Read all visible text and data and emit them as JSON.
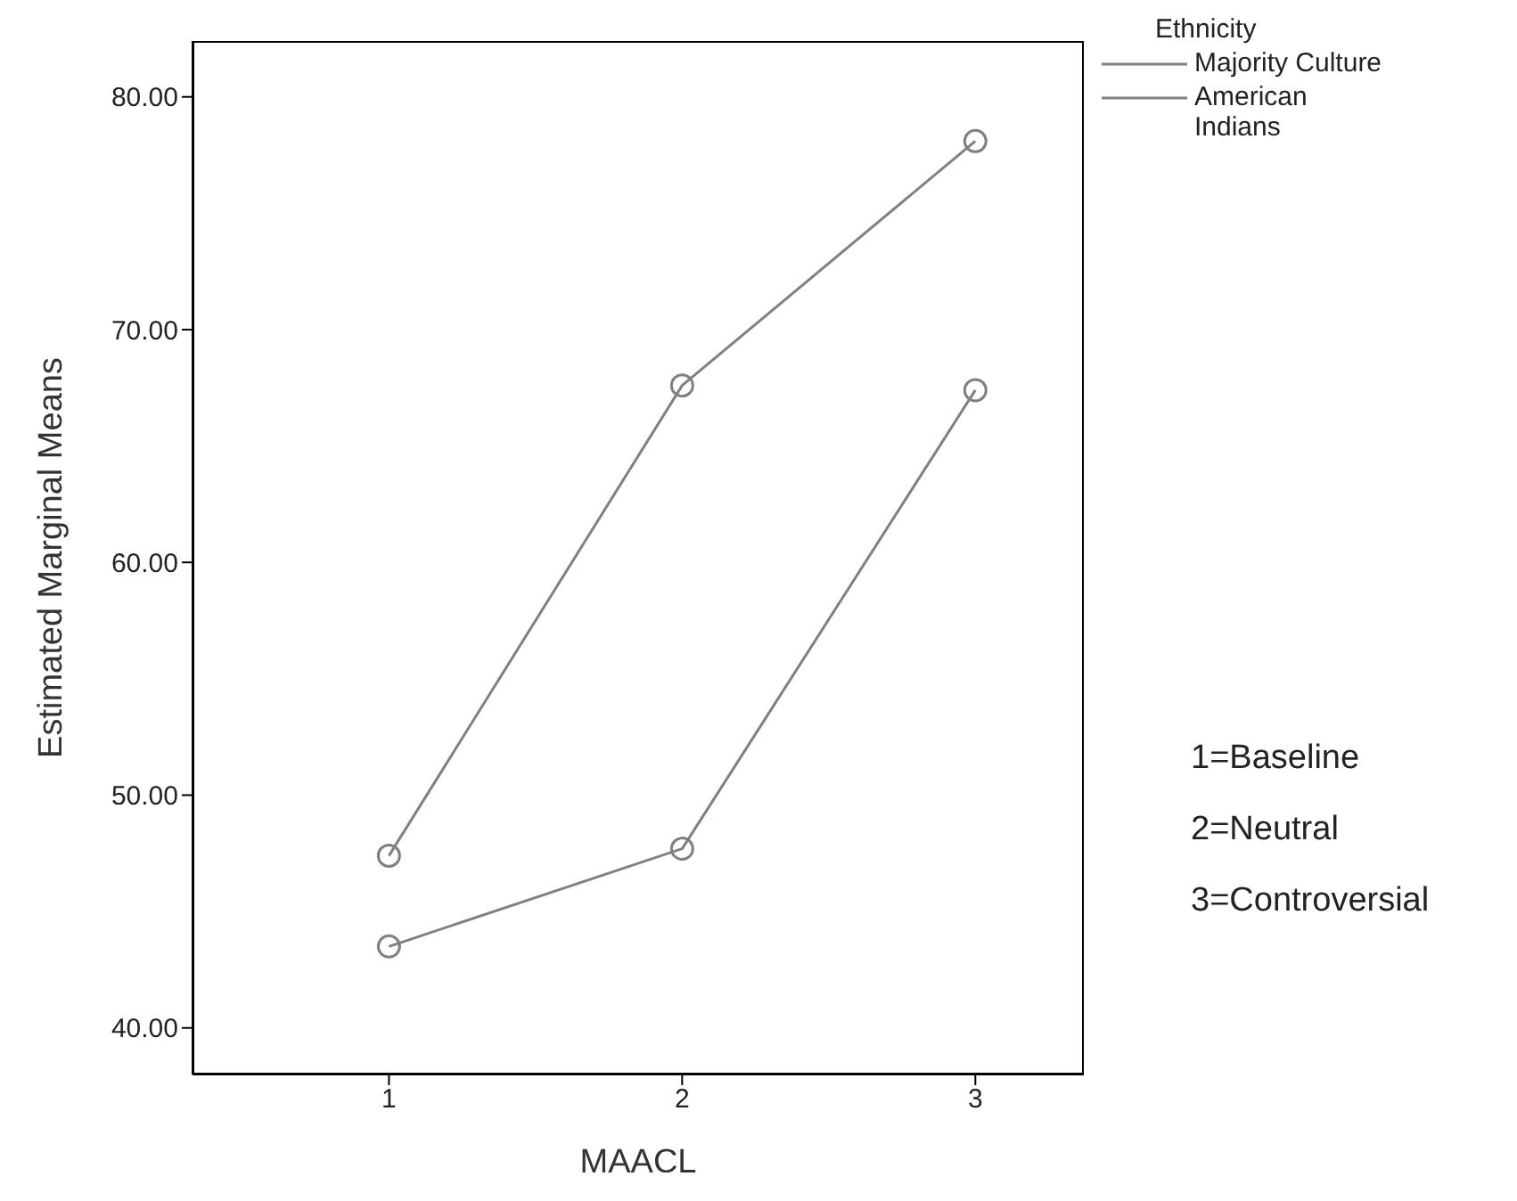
{
  "chart_data": {
    "type": "line",
    "xlabel": "MAACL",
    "ylabel": "Estimated Marginal Means",
    "legend_title": "Ethnicity",
    "x": [
      1,
      2,
      3
    ],
    "series": [
      {
        "name": "Majority Culture",
        "color": "#808080",
        "values": [
          47.4,
          67.6,
          78.1
        ]
      },
      {
        "name": "American Indians",
        "color": "#808080",
        "values": [
          43.5,
          47.7,
          67.4
        ]
      }
    ],
    "xlim": [
      0.33,
      3.37
    ],
    "xticks": [
      1,
      2,
      3
    ],
    "ylim": [
      38,
      82.4
    ],
    "yticks": [
      {
        "value": 40,
        "label": "40.00"
      },
      {
        "value": 50,
        "label": "50.00"
      },
      {
        "value": 60,
        "label": "60.00"
      },
      {
        "value": 70,
        "label": "70.00"
      },
      {
        "value": 80,
        "label": "80.00"
      }
    ],
    "legend": "top right",
    "grid": false,
    "marker": "circle",
    "line_style": "solid",
    "annotations": [
      "1=Baseline",
      "2=Neutral",
      "3=Controversial"
    ]
  }
}
